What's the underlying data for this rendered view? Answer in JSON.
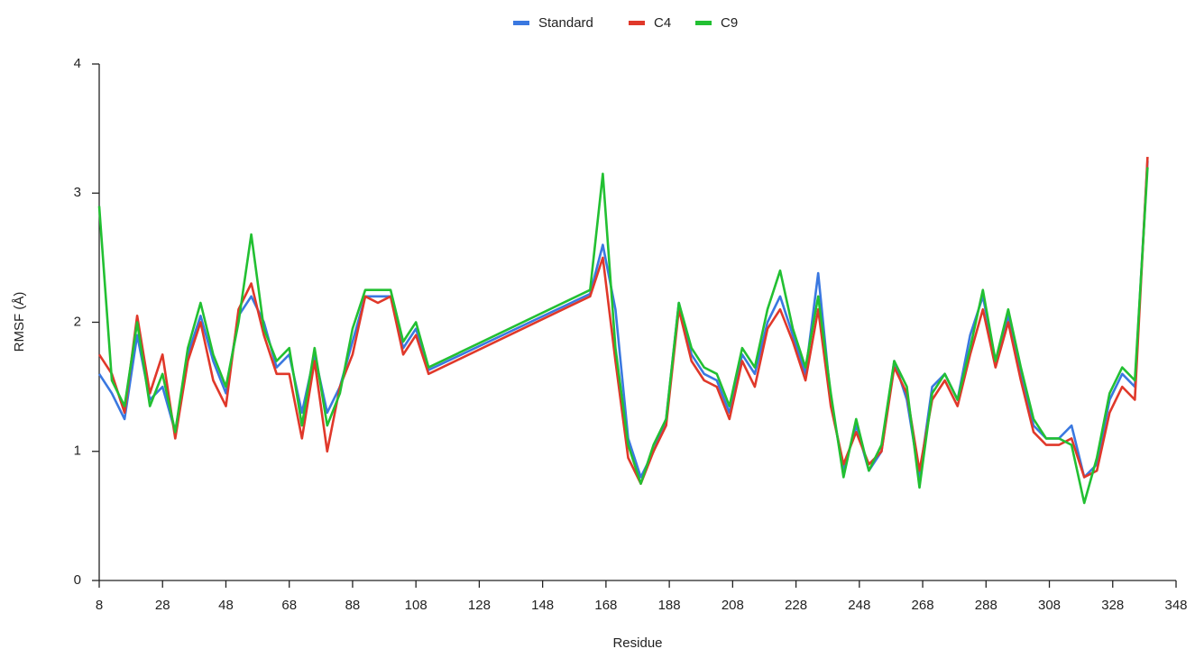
{
  "chart_data": {
    "type": "line",
    "x_label": "Residue",
    "y_label": "RMSF (Å)",
    "x": [
      8,
      12,
      16,
      20,
      24,
      28,
      32,
      36,
      40,
      44,
      48,
      52,
      56,
      60,
      64,
      68,
      72,
      76,
      80,
      84,
      88,
      92,
      96,
      100,
      104,
      108,
      112,
      163,
      167,
      171,
      175,
      179,
      183,
      187,
      191,
      195,
      199,
      203,
      207,
      211,
      215,
      219,
      223,
      227,
      231,
      235,
      239,
      243,
      247,
      251,
      255,
      259,
      263,
      267,
      271,
      275,
      279,
      283,
      287,
      291,
      295,
      299,
      303,
      307,
      311,
      315,
      319,
      323,
      327,
      331,
      335,
      339
    ],
    "series": [
      {
        "name": "Standard",
        "color": "#3a78e0",
        "values": [
          1.6,
          1.45,
          1.25,
          1.9,
          1.4,
          1.5,
          1.15,
          1.75,
          2.05,
          1.7,
          1.45,
          2.05,
          2.2,
          2.0,
          1.65,
          1.75,
          1.3,
          1.75,
          1.3,
          1.5,
          1.85,
          2.2,
          2.2,
          2.2,
          1.8,
          1.95,
          1.63,
          2.22,
          2.6,
          2.1,
          1.1,
          0.8,
          1.0,
          1.25,
          2.15,
          1.75,
          1.6,
          1.55,
          1.3,
          1.75,
          1.6,
          2.0,
          2.2,
          1.9,
          1.6,
          2.38,
          1.4,
          0.85,
          1.2,
          0.85,
          1.0,
          1.7,
          1.4,
          0.8,
          1.5,
          1.6,
          1.4,
          1.9,
          2.2,
          1.7,
          2.05,
          1.6,
          1.2,
          1.1,
          1.1,
          1.2,
          0.8,
          0.9,
          1.4,
          1.6,
          1.5,
          3.25
        ]
      },
      {
        "name": "C4",
        "color": "#e0382a",
        "values": [
          1.75,
          1.6,
          1.3,
          2.05,
          1.45,
          1.75,
          1.1,
          1.7,
          2.0,
          1.55,
          1.35,
          2.1,
          2.3,
          1.9,
          1.6,
          1.6,
          1.1,
          1.7,
          1.0,
          1.5,
          1.75,
          2.2,
          2.15,
          2.2,
          1.75,
          1.9,
          1.6,
          2.2,
          2.5,
          1.7,
          0.95,
          0.75,
          1.0,
          1.2,
          2.1,
          1.7,
          1.55,
          1.5,
          1.25,
          1.7,
          1.5,
          1.95,
          2.1,
          1.85,
          1.55,
          2.1,
          1.35,
          0.9,
          1.15,
          0.9,
          1.0,
          1.65,
          1.45,
          0.85,
          1.4,
          1.55,
          1.35,
          1.75,
          2.1,
          1.65,
          2.0,
          1.55,
          1.15,
          1.05,
          1.05,
          1.1,
          0.8,
          0.85,
          1.3,
          1.5,
          1.4,
          3.28
        ]
      },
      {
        "name": "C9",
        "color": "#22c032",
        "values": [
          2.9,
          1.55,
          1.35,
          2.0,
          1.35,
          1.6,
          1.15,
          1.8,
          2.15,
          1.75,
          1.5,
          2.0,
          2.68,
          1.95,
          1.7,
          1.8,
          1.2,
          1.8,
          1.2,
          1.45,
          1.95,
          2.25,
          2.25,
          2.25,
          1.85,
          2.0,
          1.65,
          2.25,
          3.15,
          1.8,
          1.05,
          0.75,
          1.05,
          1.25,
          2.15,
          1.8,
          1.65,
          1.6,
          1.35,
          1.8,
          1.65,
          2.1,
          2.4,
          1.95,
          1.65,
          2.2,
          1.45,
          0.8,
          1.25,
          0.85,
          1.05,
          1.7,
          1.5,
          0.72,
          1.45,
          1.6,
          1.4,
          1.8,
          2.25,
          1.7,
          2.1,
          1.65,
          1.25,
          1.1,
          1.1,
          1.05,
          0.6,
          0.95,
          1.45,
          1.65,
          1.55,
          3.2
        ]
      }
    ],
    "xlim": [
      8,
      348
    ],
    "xticks": [
      8,
      28,
      48,
      68,
      88,
      108,
      128,
      148,
      168,
      188,
      208,
      228,
      248,
      268,
      288,
      308,
      328,
      348
    ],
    "ylim": [
      0,
      4
    ],
    "yticks": [
      0,
      1,
      2,
      3,
      4
    ],
    "grid": false,
    "legend": "top"
  }
}
